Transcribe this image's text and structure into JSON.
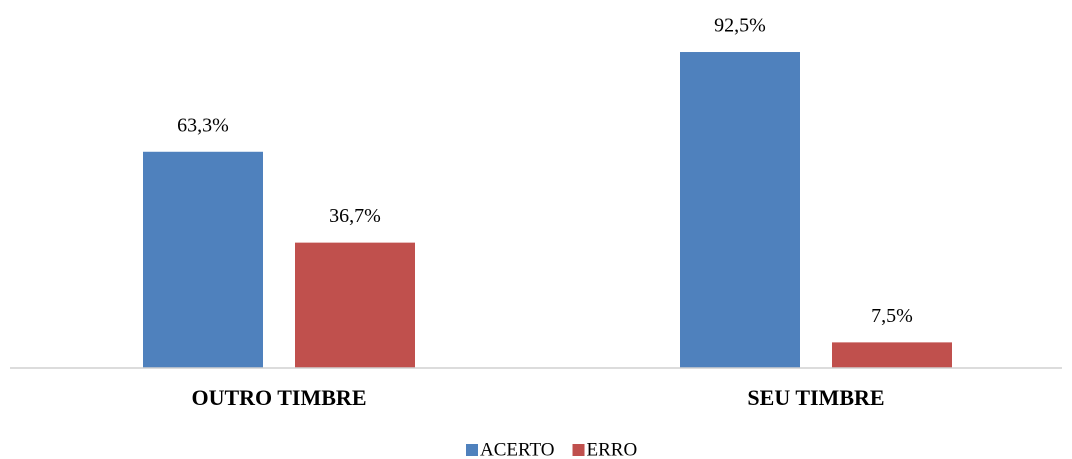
{
  "chart_data": {
    "type": "bar",
    "categories": [
      "OUTRO TIMBRE",
      "SEU TIMBRE"
    ],
    "series": [
      {
        "name": "ACERTO",
        "color": "#4f81bd",
        "values": [
          63.3,
          92.5
        ],
        "value_labels": [
          "63,3%",
          "92,5%"
        ]
      },
      {
        "name": "ERRO",
        "color": "#c0504d",
        "values": [
          36.7,
          7.5
        ],
        "value_labels": [
          "36,7%",
          "7,5%"
        ]
      }
    ],
    "legend": "bottom"
  }
}
